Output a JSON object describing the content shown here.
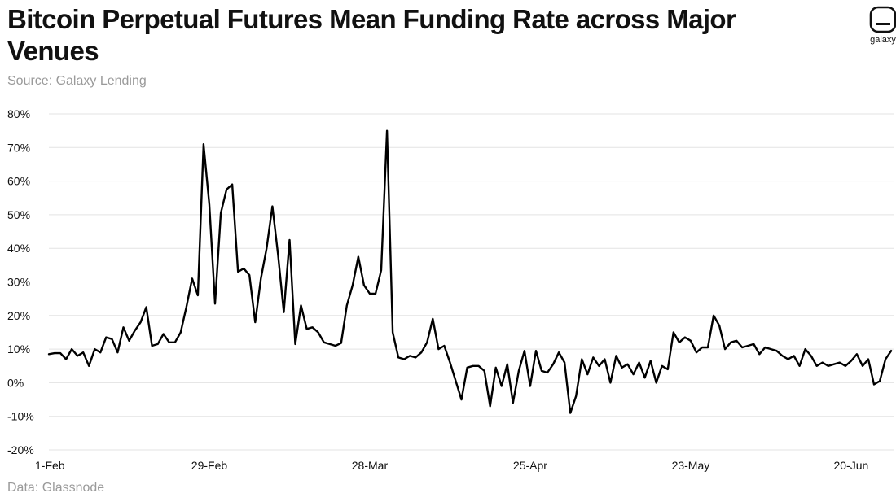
{
  "header": {
    "title": "Bitcoin Perpetual Futures Mean Funding Rate across Major Venues",
    "source": "Source: Galaxy Lending"
  },
  "footer": {
    "data_credit": "Data: Glassnode"
  },
  "logo": {
    "text": "galaxy",
    "icon": "galaxy-logo-icon"
  },
  "colors": {
    "line": "#000000",
    "grid": "#e3e3e3",
    "muted_text": "#9a9a9a"
  },
  "chart_data": {
    "type": "line",
    "title": "Bitcoin Perpetual Futures Mean Funding Rate across Major Venues",
    "xlabel": "",
    "ylabel": "",
    "ylim": [
      -20,
      80
    ],
    "y_ticks": [
      -20,
      -10,
      0,
      10,
      20,
      30,
      40,
      50,
      60,
      70,
      80
    ],
    "y_tick_labels": [
      "-20%",
      "-10%",
      "0%",
      "10%",
      "20%",
      "30%",
      "40%",
      "50%",
      "60%",
      "70%",
      "80%"
    ],
    "x_start": "1-Feb",
    "x_ticks": [
      {
        "day": 0,
        "label": "1-Feb"
      },
      {
        "day": 28,
        "label": "29-Feb"
      },
      {
        "day": 56,
        "label": "28-Mar"
      },
      {
        "day": 84,
        "label": "25-Apr"
      },
      {
        "day": 112,
        "label": "23-May"
      },
      {
        "day": 140,
        "label": "20-Jun"
      }
    ],
    "series": [
      {
        "name": "Mean Funding Rate",
        "unit": "%",
        "values": [
          8.5,
          8.8,
          8.8,
          7.0,
          10.0,
          8.0,
          9.0,
          5.0,
          10.0,
          9.0,
          13.5,
          13.0,
          9.0,
          16.5,
          12.5,
          15.5,
          18.0,
          22.5,
          11.0,
          11.5,
          14.5,
          12.0,
          12.0,
          15.0,
          22.5,
          31.0,
          26.0,
          71.0,
          53.0,
          23.5,
          50.5,
          57.5,
          59.0,
          33.0,
          34.0,
          32.0,
          18.0,
          31.0,
          40.0,
          52.5,
          38.0,
          21.0,
          42.5,
          11.5,
          23.0,
          16.0,
          16.5,
          15.0,
          12.0,
          11.5,
          11.0,
          11.8,
          23.0,
          29.0,
          37.5,
          29.0,
          26.5,
          26.5,
          33.5,
          75.0,
          15.0,
          7.5,
          7.0,
          8.0,
          7.5,
          9.0,
          12.0,
          19.0,
          10.0,
          11.0,
          6.0,
          0.5,
          -5.0,
          4.5,
          5.0,
          5.0,
          3.5,
          -7.0,
          4.5,
          -1.0,
          5.5,
          -6.0,
          3.5,
          9.5,
          -1.0,
          9.5,
          3.5,
          3.0,
          5.5,
          9.0,
          6.0,
          -9.0,
          -4.0,
          7.0,
          2.5,
          7.5,
          5.0,
          7.0,
          0.0,
          8.0,
          4.5,
          5.5,
          2.5,
          6.0,
          1.5,
          6.5,
          0.0,
          5.0,
          4.0,
          15.0,
          12.0,
          13.5,
          12.5,
          9.0,
          10.5,
          10.5,
          20.0,
          17.0,
          10.0,
          12.0,
          12.5,
          10.5,
          11.0,
          11.5,
          8.5,
          10.5,
          10.0,
          9.5,
          8.0,
          7.0,
          8.0,
          5.0,
          10.0,
          8.0,
          5.0,
          6.0,
          5.0,
          5.5,
          6.0,
          5.0,
          6.5,
          8.5,
          5.0,
          7.0,
          -0.5,
          0.5,
          7.0,
          9.5
        ]
      }
    ]
  }
}
